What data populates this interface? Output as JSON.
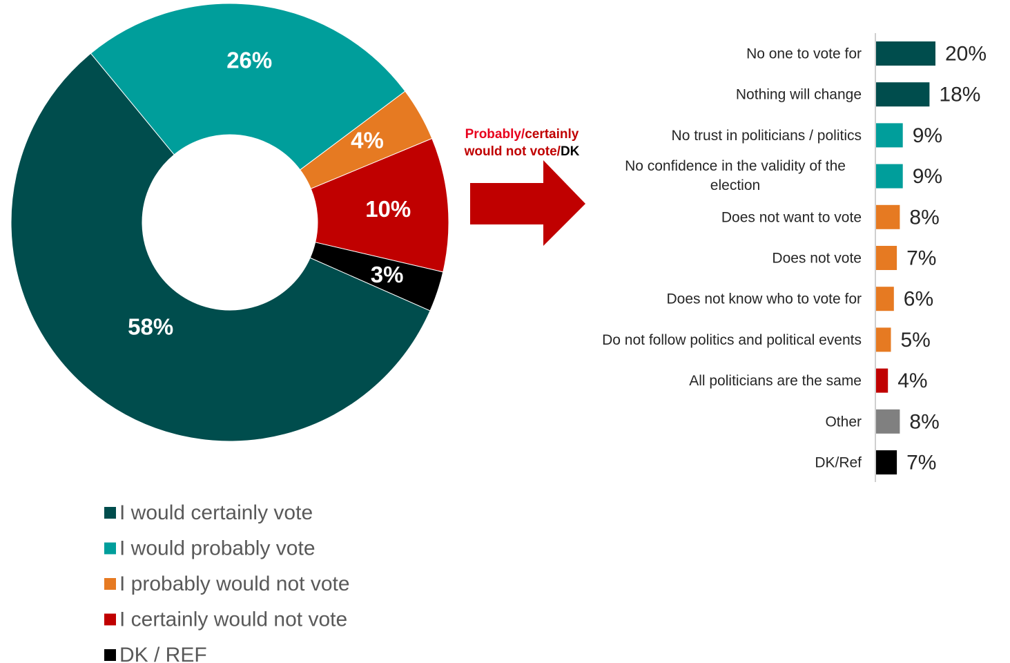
{
  "chart_data": [
    {
      "type": "pie",
      "variant": "donut",
      "categories": [
        "I would certainly vote",
        "I would probably vote",
        "I probably would not vote",
        "I certainly would not vote",
        "DK / REF"
      ],
      "values": [
        58,
        26,
        4,
        10,
        3
      ],
      "labels": [
        "58%",
        "26%",
        "4%",
        "10%",
        "3%"
      ],
      "colors": [
        "#004d4d",
        "#009e9b",
        "#e67a22",
        "#c00000",
        "#000000"
      ],
      "legend_position": "bottom-left"
    },
    {
      "type": "bar",
      "orientation": "horizontal",
      "categories": [
        "No one to vote for",
        "Nothing will change",
        "No trust in politicians / politics",
        "No confidence in the validity of the election",
        "Does not want to vote",
        "Does not vote",
        "Does not know who to vote for",
        "Do not follow politics and political events",
        "All politicians are the same",
        "Other",
        "DK/Ref"
      ],
      "values": [
        20,
        18,
        9,
        9,
        8,
        7,
        6,
        5,
        4,
        8,
        7
      ],
      "labels": [
        "20%",
        "18%",
        "9%",
        "9%",
        "8%",
        "7%",
        "6%",
        "5%",
        "4%",
        "8%",
        "7%"
      ],
      "colors": [
        "#004d4d",
        "#004d4d",
        "#009e9b",
        "#009e9b",
        "#e67a22",
        "#e67a22",
        "#e67a22",
        "#e67a22",
        "#c00000",
        "#808080",
        "#000000"
      ]
    }
  ],
  "arrow_caption": {
    "part1": "Probably/",
    "part2": "certainly",
    "part3": "would not vote/",
    "part4": "DK"
  },
  "colors": {
    "arrow": "#c00000",
    "caption_red": "#e8001c",
    "caption_dark_red": "#c00000",
    "caption_black": "#000000"
  }
}
